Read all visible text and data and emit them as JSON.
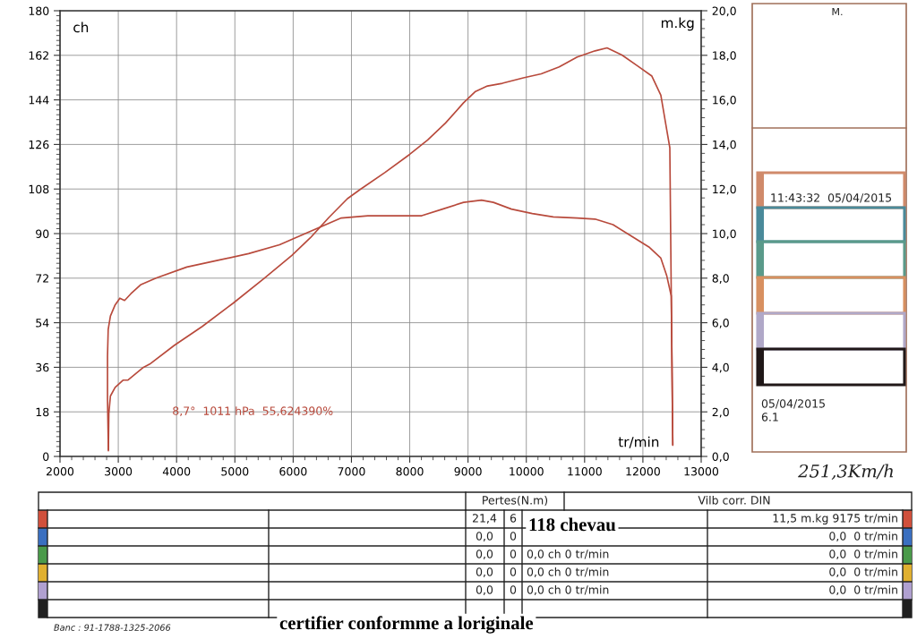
{
  "chart_data": {
    "type": "line",
    "xlabel": "tr/min",
    "ylabel": "ch",
    "y2label": "m.kg",
    "xlim": [
      2000,
      13000
    ],
    "xticks": [
      2000,
      3000,
      4000,
      5000,
      6000,
      7000,
      8000,
      9000,
      10000,
      11000,
      12000,
      13000
    ],
    "ylim": [
      0,
      180
    ],
    "yticks": [
      0,
      18,
      36,
      54,
      72,
      90,
      108,
      126,
      144,
      162,
      180
    ],
    "y2lim": [
      0,
      20
    ],
    "y2ticks": [
      {
        "value": 0,
        "label": "0,0"
      },
      {
        "value": 2,
        "label": "2,0"
      },
      {
        "value": 4,
        "label": "4,0"
      },
      {
        "value": 6,
        "label": "6,0"
      },
      {
        "value": 8,
        "label": "8,0"
      },
      {
        "value": 10,
        "label": "10,0"
      },
      {
        "value": 12,
        "label": "12,0"
      },
      {
        "value": 14,
        "label": "14,0"
      },
      {
        "value": 16,
        "label": "16,0"
      },
      {
        "value": 18,
        "label": "18,0"
      },
      {
        "value": 20,
        "label": "20,0"
      }
    ],
    "grid": true,
    "line_style": "solid",
    "series": [
      {
        "color": "#b84a3c",
        "x": [
          2830,
          2838,
          2865,
          2946,
          3081,
          3162,
          3432,
          3540,
          3964,
          4441,
          4971,
          5501,
          5978,
          6295,
          6613,
          6931,
          7143,
          7577,
          8000,
          8308,
          8615,
          8923,
          9128,
          9333,
          9590,
          9949,
          10256,
          10564,
          10872,
          11179,
          11385,
          11641,
          11897,
          12154,
          12308,
          12410,
          12462,
          12487,
          12513
        ],
        "values": [
          2.3,
          17.4,
          24.4,
          27.9,
          30.8,
          30.8,
          36.0,
          37.3,
          44.9,
          52.5,
          61.9,
          71.9,
          81.2,
          88.3,
          96.5,
          104.1,
          107.7,
          114.7,
          122.0,
          127.8,
          134.7,
          142.8,
          147.4,
          149.6,
          150.7,
          152.9,
          154.5,
          157.3,
          161.3,
          163.8,
          165.0,
          162.1,
          157.9,
          153.6,
          145.9,
          131.8,
          124.7,
          64.7,
          4.7
        ]
      },
      {
        "color": "#b84a3c",
        "axis": "y2",
        "x": [
          2830,
          2815,
          2815,
          2827,
          2865,
          2946,
          3027,
          3108,
          3216,
          3381,
          3646,
          4176,
          4706,
          5236,
          5766,
          6030,
          6295,
          6560,
          6825,
          7282,
          7795,
          8205,
          8564,
          8923,
          9231,
          9436,
          9744,
          10103,
          10462,
          10872,
          11179,
          11487,
          11795,
          12103,
          12308,
          12410,
          12487,
          12513
        ],
        "values": [
          0.3,
          2.6,
          4.5,
          5.7,
          6.3,
          6.8,
          7.1,
          7.0,
          7.3,
          7.7,
          8.0,
          8.5,
          8.8,
          9.1,
          9.5,
          9.8,
          10.1,
          10.4,
          10.7,
          10.8,
          10.8,
          10.8,
          11.1,
          11.4,
          11.5,
          11.4,
          11.1,
          10.9,
          10.75,
          10.7,
          10.65,
          10.4,
          9.9,
          9.4,
          8.9,
          8.1,
          7.2,
          0.5
        ]
      }
    ],
    "annotations": [
      "8,7°  1011 hPa  55,624390%",
      "M.",
      "11:43:32  05/04/2015",
      "05/04/2015",
      "6.1",
      "251,3Km/h",
      "Pertes(N.m)",
      "Vilb corr. DIN",
      "21,4",
      "6",
      "118 chevau",
      "11,5 m.kg 9175 tr/min",
      "0,0",
      "0,0",
      "0,0",
      "0,0",
      "0",
      "0",
      "0",
      "0",
      "0,0 ch 0 tr/min",
      "0,0 ch 0 tr/min",
      "0,0 ch 0 tr/min",
      "0,0  0 tr/min",
      "0,0  0 tr/min",
      "0,0  0 tr/min",
      "0,0  0 tr/min",
      "Banc : 91-1788-1325-2066",
      "certifier conformme a loriginale"
    ]
  }
}
